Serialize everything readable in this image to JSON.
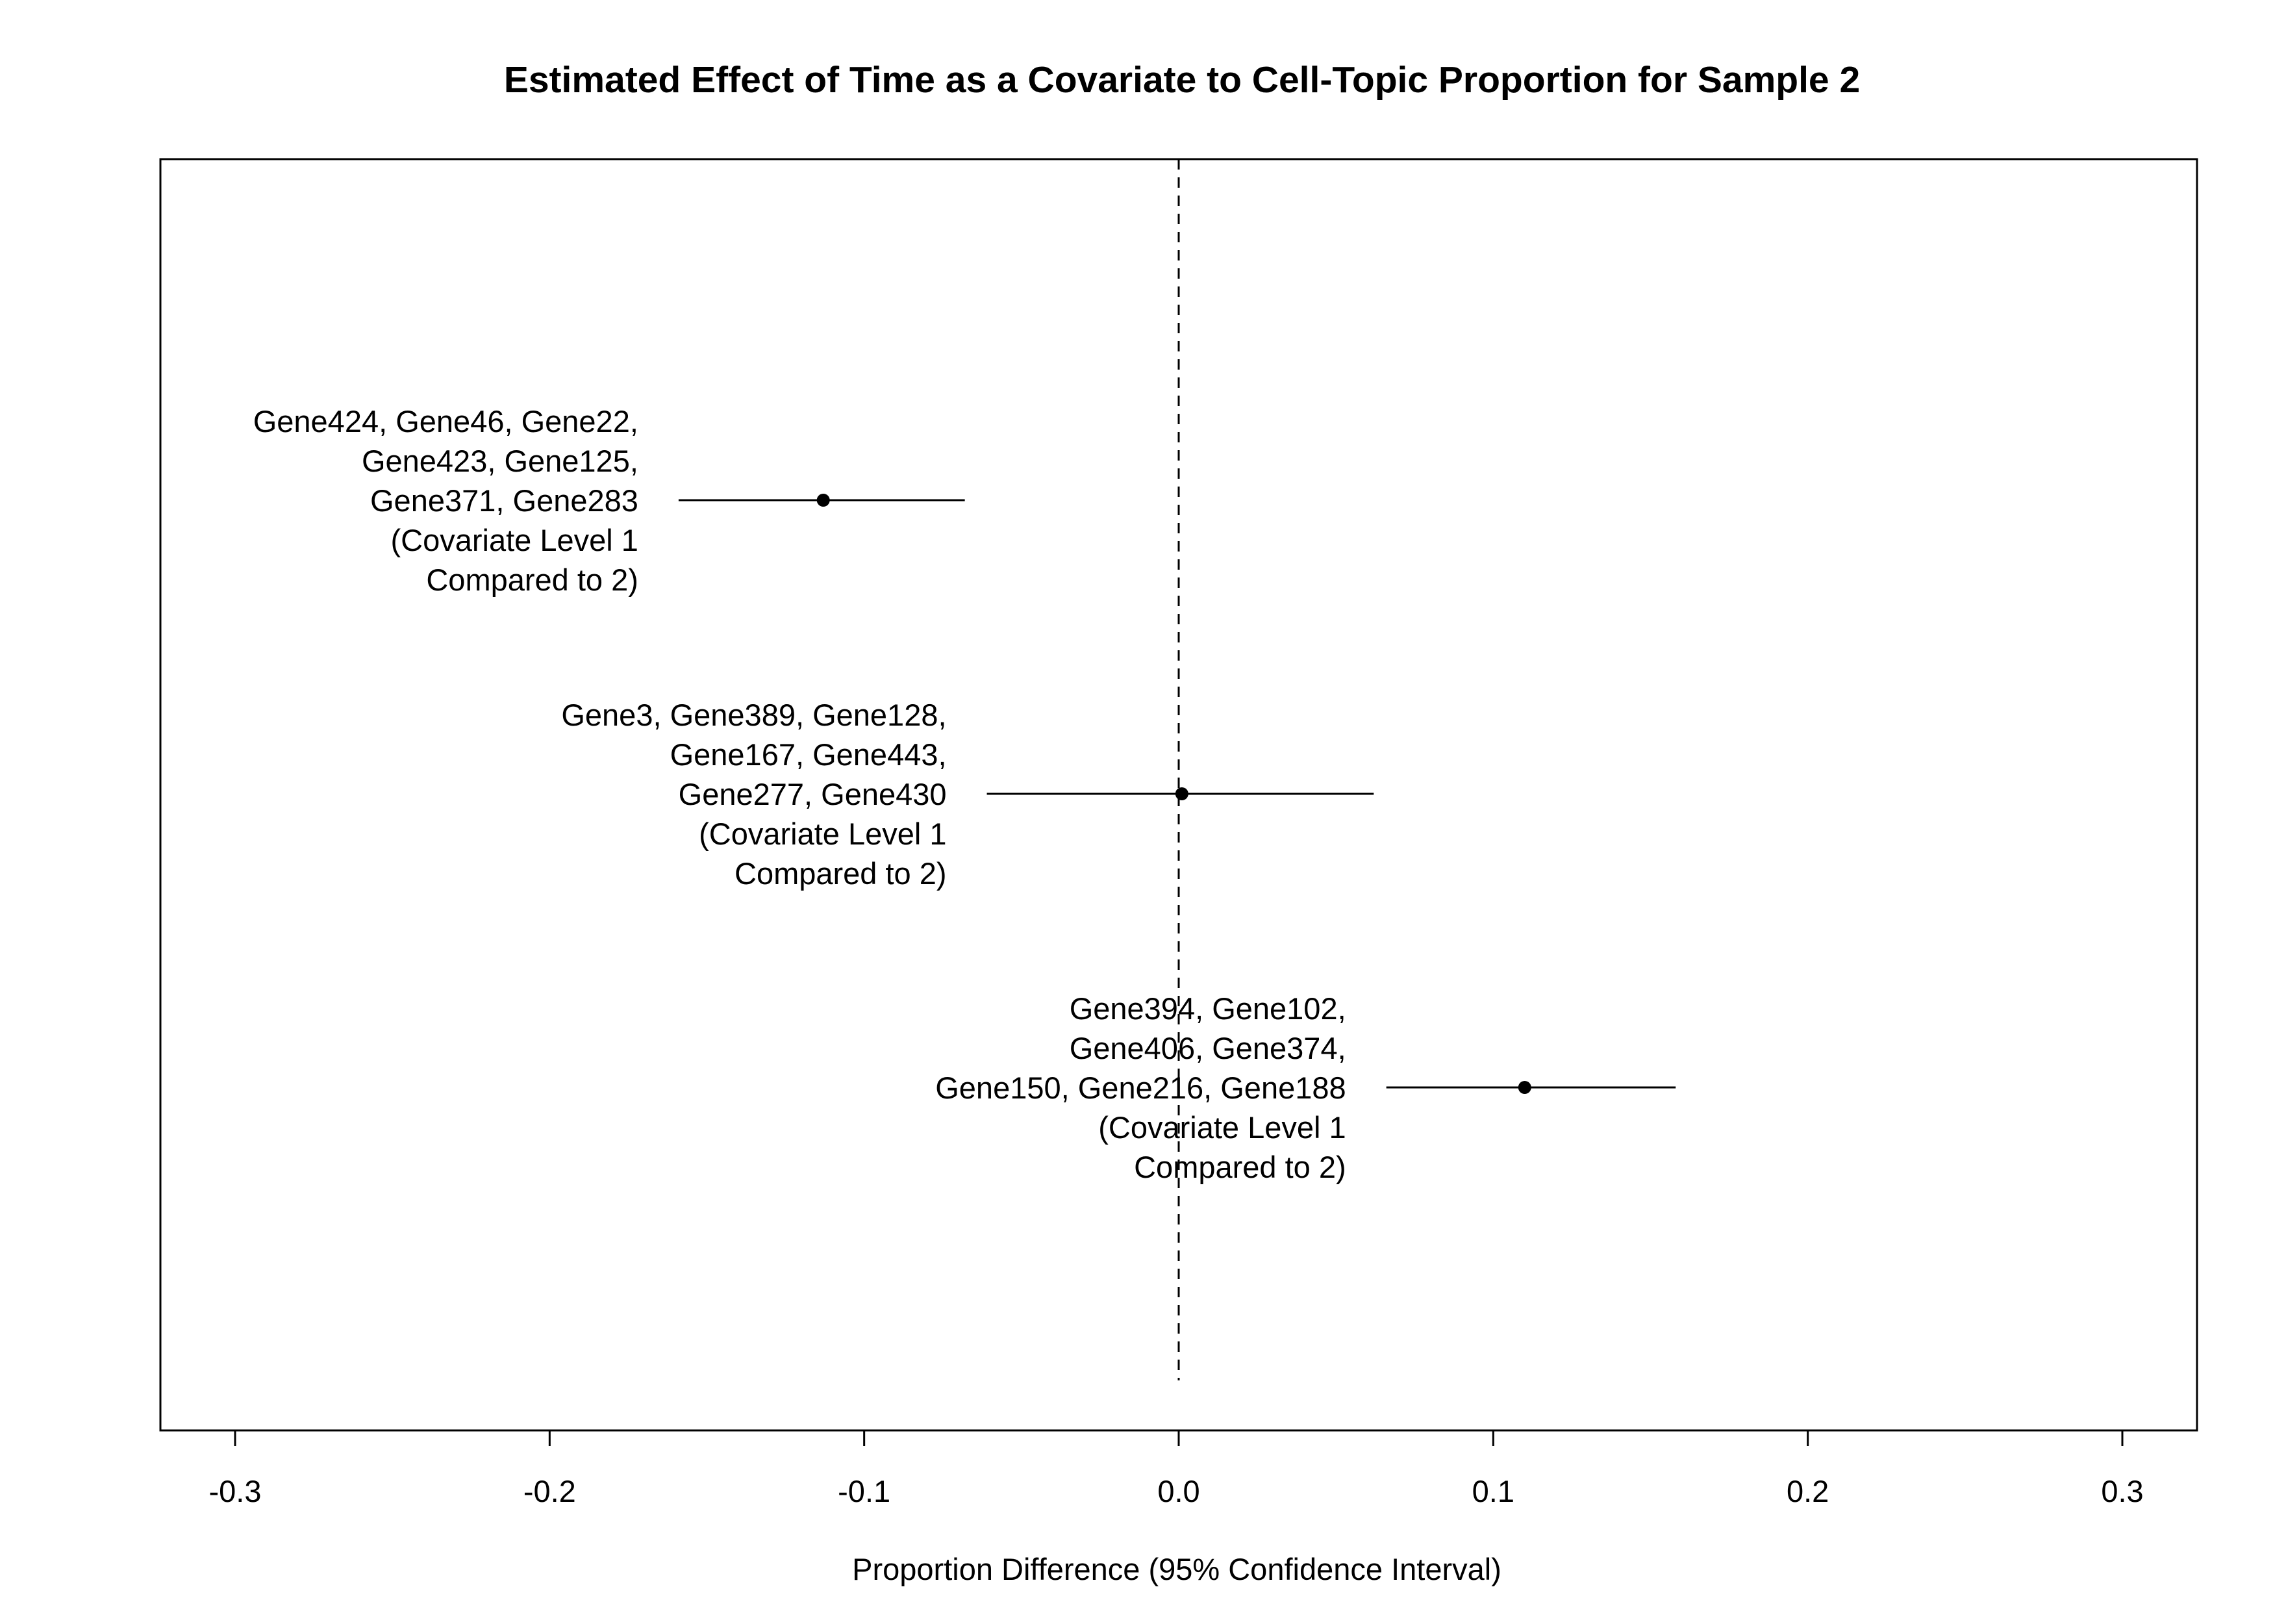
{
  "chart_data": {
    "type": "forest",
    "title": "Estimated Effect of Time as a Covariate to Cell-Topic Proportion for Sample 2",
    "xlabel": "Proportion Difference (95% Confidence Interval)",
    "ylabel": "",
    "xlim": [
      -0.3,
      0.3
    ],
    "x_ticks": [
      -0.3,
      -0.2,
      -0.1,
      0.0,
      0.1,
      0.2,
      0.3
    ],
    "x_tick_labels": [
      "-0.3",
      "-0.2",
      "-0.1",
      "0.0",
      "0.1",
      "0.2",
      "0.3"
    ],
    "reference_line": 0.0,
    "grid": false,
    "legend": "none",
    "series": [
      {
        "label_lines": [
          "Gene424, Gene46, Gene22,",
          "Gene423, Gene125,",
          "Gene371, Gene283",
          "(Covariate Level 1",
          "Compared to 2)"
        ],
        "estimate": -0.113,
        "lower": -0.159,
        "upper": -0.068
      },
      {
        "label_lines": [
          "Gene3, Gene389, Gene128,",
          "Gene167, Gene443,",
          "Gene277, Gene430",
          "(Covariate Level 1",
          "Compared to 2)"
        ],
        "estimate": 0.001,
        "lower": -0.061,
        "upper": 0.062
      },
      {
        "label_lines": [
          "Gene394, Gene102,",
          "Gene406, Gene374,",
          "Gene150, Gene216, Gene188",
          "(Covariate Level 1",
          "Compared to 2)"
        ],
        "estimate": 0.11,
        "lower": 0.066,
        "upper": 0.158
      }
    ]
  }
}
